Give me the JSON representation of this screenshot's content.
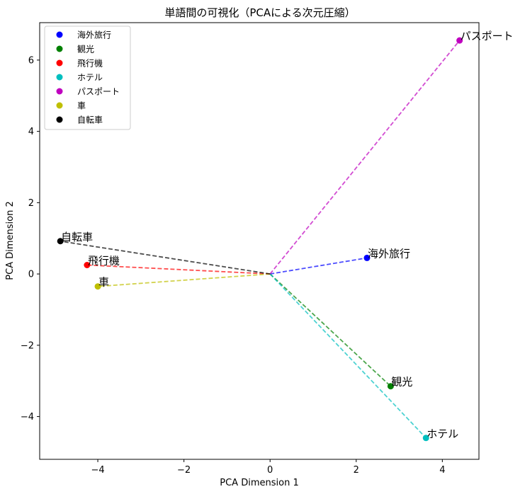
{
  "chart_data": {
    "type": "scatter",
    "title": "単語間の可視化（PCAによる次元圧縮）",
    "xlabel": "PCA Dimension 1",
    "ylabel": "PCA Dimension 2",
    "xlim": [
      -5.35,
      4.85
    ],
    "ylim": [
      -5.2,
      7.05
    ],
    "xticks": [
      -4,
      -2,
      0,
      2,
      4
    ],
    "yticks": [
      -4,
      -2,
      0,
      2,
      4,
      6
    ],
    "origin": [
      0,
      0
    ],
    "grid": false,
    "legend_position": "top-left",
    "points": [
      {
        "label": "海外旅行",
        "x": 2.25,
        "y": 0.45,
        "color": "#0000ff"
      },
      {
        "label": "観光",
        "x": 2.8,
        "y": -3.15,
        "color": "#008000"
      },
      {
        "label": "飛行機",
        "x": -4.25,
        "y": 0.25,
        "color": "#ff0000"
      },
      {
        "label": "ホテル",
        "x": 3.62,
        "y": -4.6,
        "color": "#00bfbf"
      },
      {
        "label": "パスポート",
        "x": 4.4,
        "y": 6.55,
        "color": "#bf00bf"
      },
      {
        "label": "車",
        "x": -4.0,
        "y": -0.35,
        "color": "#bfbf00"
      },
      {
        "label": "自転車",
        "x": -4.87,
        "y": 0.92,
        "color": "#000000"
      }
    ]
  }
}
